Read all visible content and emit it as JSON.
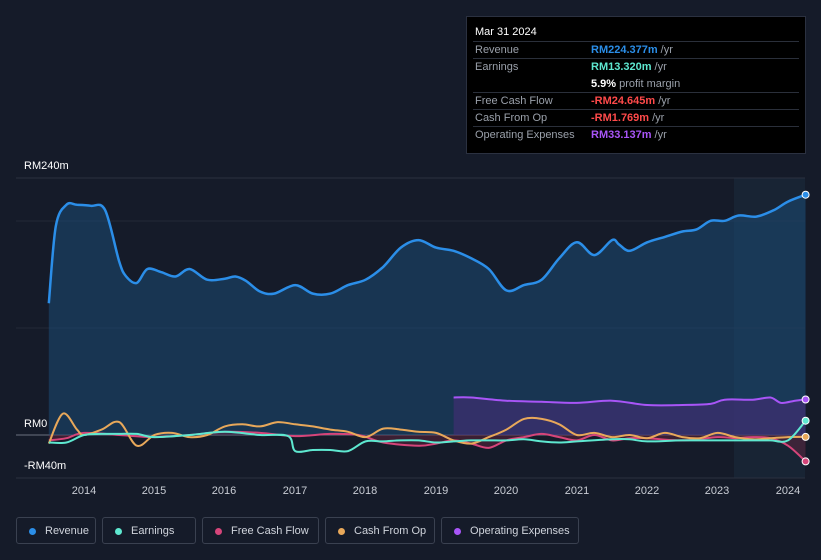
{
  "tooltip": {
    "date": "Mar 31 2024",
    "rows": [
      {
        "label": "Revenue",
        "value": "RM224.377m",
        "unit": "/yr",
        "color": "#2b8ee8"
      },
      {
        "label": "Earnings",
        "value": "RM13.320m",
        "unit": "/yr",
        "color": "#5ee8d0"
      },
      {
        "label": "",
        "value": "5.9%",
        "unit": "profit margin",
        "color": "#ffffff"
      },
      {
        "label": "Free Cash Flow",
        "value": "-RM24.645m",
        "unit": "/yr",
        "color": "#ff4a4a"
      },
      {
        "label": "Cash From Op",
        "value": "-RM1.769m",
        "unit": "/yr",
        "color": "#ff4a4a"
      },
      {
        "label": "Operating Expenses",
        "value": "RM33.137m",
        "unit": "/yr",
        "color": "#a855f7"
      }
    ]
  },
  "axis": {
    "top_label": "RM240m",
    "zero_label": "RM0",
    "bottom_label": "-RM40m"
  },
  "legend": [
    {
      "label": "Revenue",
      "color": "#2b8ee8"
    },
    {
      "label": "Earnings",
      "color": "#5ee8d0"
    },
    {
      "label": "Free Cash Flow",
      "color": "#d6457a"
    },
    {
      "label": "Cash From Op",
      "color": "#e8a85a"
    },
    {
      "label": "Operating Expenses",
      "color": "#a855f7"
    }
  ],
  "chart_data": {
    "type": "line",
    "title": "",
    "xlabel": "",
    "ylabel": "",
    "xlim": [
      2013.2,
      2024.25
    ],
    "ylim": [
      -40,
      240
    ],
    "tick_labels": [
      "2014",
      "2015",
      "2016",
      "2017",
      "2018",
      "2019",
      "2020",
      "2021",
      "2022",
      "2023",
      "2024"
    ],
    "series": [
      {
        "name": "Revenue",
        "color": "#2b8ee8",
        "fill": true,
        "x": [
          2013.5,
          2013.6,
          2013.75,
          2013.9,
          2014.1,
          2014.3,
          2014.5,
          2014.6,
          2014.75,
          2014.9,
          2015.1,
          2015.3,
          2015.5,
          2015.75,
          2016.0,
          2016.15,
          2016.3,
          2016.5,
          2016.7,
          2017.0,
          2017.25,
          2017.5,
          2017.75,
          2018.0,
          2018.25,
          2018.5,
          2018.75,
          2019.0,
          2019.25,
          2019.5,
          2019.75,
          2020.0,
          2020.25,
          2020.5,
          2020.75,
          2021.0,
          2021.25,
          2021.5,
          2021.6,
          2021.75,
          2022.0,
          2022.25,
          2022.5,
          2022.7,
          2022.9,
          2023.1,
          2023.3,
          2023.55,
          2023.8,
          2024.0,
          2024.25
        ],
        "y": [
          123,
          195,
          215,
          215,
          214,
          210,
          162,
          148,
          142,
          155,
          152,
          148,
          155,
          145,
          146,
          148,
          144,
          134,
          132,
          140,
          132,
          132,
          140,
          145,
          157,
          175,
          182,
          175,
          172,
          165,
          155,
          135,
          140,
          145,
          165,
          180,
          168,
          182,
          178,
          172,
          180,
          185,
          190,
          192,
          200,
          200,
          205,
          204,
          210,
          218,
          224.377
        ]
      },
      {
        "name": "Operating Expenses",
        "color": "#a855f7",
        "fill": true,
        "x": [
          2019.25,
          2019.5,
          2020.0,
          2020.5,
          2021.0,
          2021.5,
          2022.0,
          2022.5,
          2022.9,
          2023.1,
          2023.5,
          2023.75,
          2023.9,
          2024.1,
          2024.25
        ],
        "y": [
          35,
          35,
          32,
          31,
          30,
          32,
          28,
          28,
          29,
          33,
          33,
          35,
          30,
          32,
          33.137
        ]
      },
      {
        "name": "Free Cash Flow",
        "color": "#d6457a",
        "fill": true,
        "x": [
          2013.5,
          2013.75,
          2014.0,
          2014.5,
          2015.0,
          2015.5,
          2016.0,
          2016.5,
          2017.0,
          2017.5,
          2017.9,
          2018.25,
          2018.75,
          2019.0,
          2019.25,
          2019.5,
          2019.75,
          2020.0,
          2020.25,
          2020.5,
          2020.75,
          2021.0,
          2021.25,
          2021.5,
          2021.75,
          2022.0,
          2022.5,
          2023.0,
          2023.25,
          2023.5,
          2023.75,
          2024.0,
          2024.25
        ],
        "y": [
          -5,
          -3,
          2,
          0,
          -2,
          0,
          3,
          2,
          -1,
          1,
          0,
          -7,
          -10,
          -8,
          -5,
          -8,
          -12,
          -5,
          -2,
          1,
          -2,
          -5,
          0,
          -5,
          -3,
          -3,
          -5,
          -2,
          -3,
          -2,
          -3,
          -10,
          -24.645
        ]
      },
      {
        "name": "Cash From Op",
        "color": "#e8a85a",
        "fill": false,
        "x": [
          2013.5,
          2013.7,
          2013.9,
          2014.0,
          2014.25,
          2014.5,
          2014.75,
          2015.0,
          2015.25,
          2015.5,
          2015.75,
          2016.0,
          2016.25,
          2016.5,
          2016.75,
          2017.0,
          2017.25,
          2017.5,
          2017.75,
          2018.0,
          2018.25,
          2018.5,
          2018.75,
          2019.0,
          2019.25,
          2019.5,
          2019.75,
          2020.0,
          2020.25,
          2020.5,
          2020.75,
          2021.0,
          2021.25,
          2021.5,
          2021.75,
          2022.0,
          2022.25,
          2022.5,
          2022.75,
          2023.0,
          2023.25,
          2023.5,
          2023.75,
          2024.0,
          2024.25
        ],
        "y": [
          -8,
          20,
          5,
          0,
          5,
          12,
          -10,
          0,
          2,
          -2,
          0,
          8,
          10,
          8,
          12,
          10,
          8,
          5,
          3,
          -2,
          6,
          5,
          3,
          2,
          -5,
          -8,
          -2,
          5,
          15,
          15,
          10,
          0,
          2,
          -2,
          0,
          -3,
          2,
          -2,
          -3,
          2,
          -2,
          -4,
          -3,
          -2,
          -1.769
        ]
      },
      {
        "name": "Earnings",
        "color": "#5ee8d0",
        "fill": false,
        "x": [
          2013.5,
          2013.75,
          2014.0,
          2014.25,
          2014.5,
          2014.75,
          2015.0,
          2015.5,
          2016.0,
          2016.5,
          2016.9,
          2017.0,
          2017.25,
          2017.5,
          2017.75,
          2018.0,
          2018.25,
          2018.5,
          2018.75,
          2019.0,
          2019.25,
          2019.5,
          2019.75,
          2020.0,
          2020.25,
          2020.5,
          2020.75,
          2021.0,
          2021.5,
          2021.75,
          2022.0,
          2022.5,
          2023.0,
          2023.5,
          2023.75,
          2024.0,
          2024.25
        ],
        "y": [
          -7,
          -7,
          0,
          1,
          1,
          1,
          -2,
          0,
          3,
          0,
          -1,
          -15,
          -14,
          -14,
          -15,
          -6,
          -6,
          -5,
          -5,
          -7,
          -6,
          -5,
          -5,
          -5,
          -4,
          -6,
          -7,
          -6,
          -4,
          -4,
          -6,
          -5,
          -5,
          -5,
          -5,
          -5,
          13.32
        ]
      }
    ]
  }
}
